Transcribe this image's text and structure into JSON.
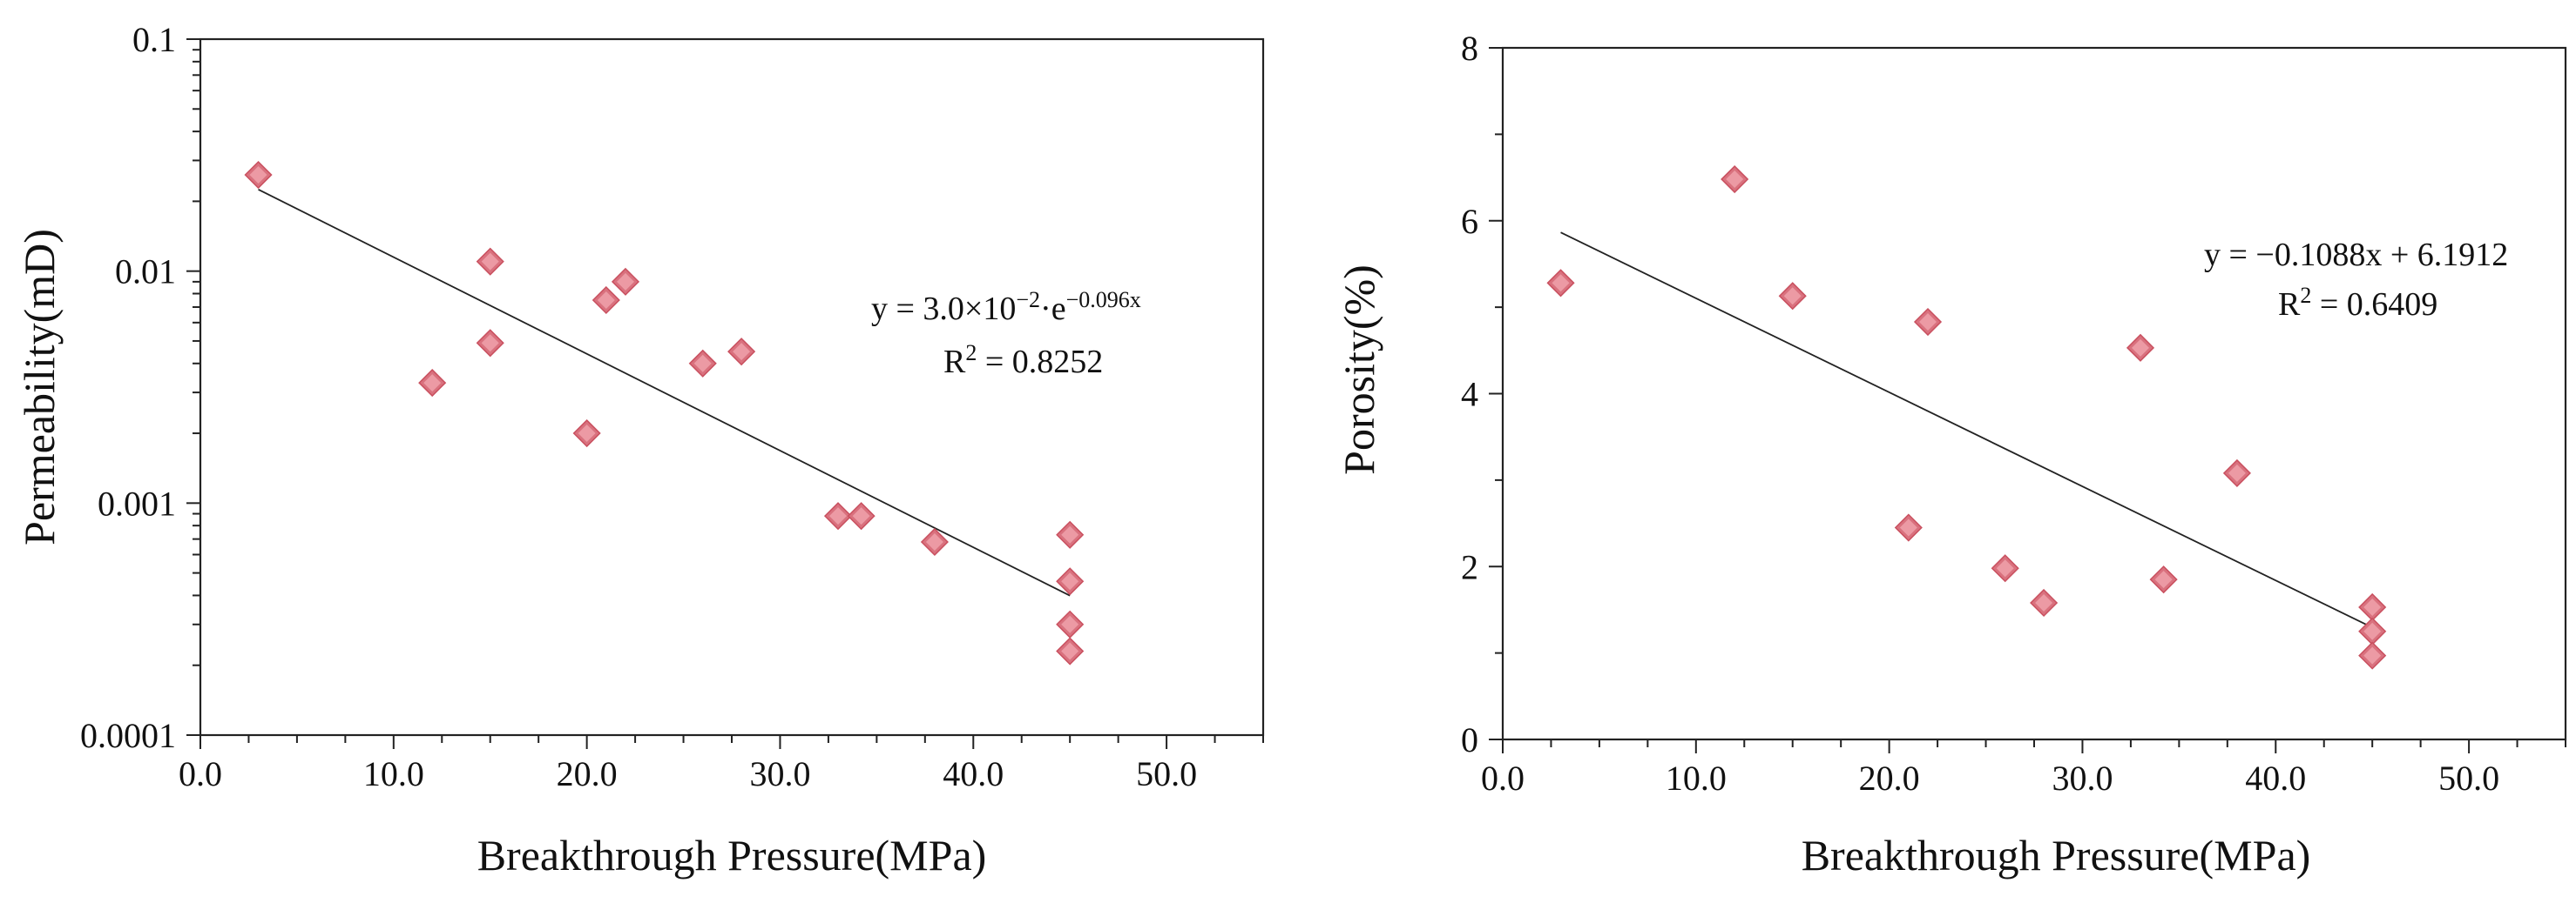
{
  "chart_data": [
    {
      "type": "scatter",
      "xlabel": "Breakthrough Pressure(MPa)",
      "ylabel": "Permeability(mD)",
      "yscale": "log",
      "xlim": [
        0,
        55
      ],
      "ylim": [
        0.0001,
        0.1
      ],
      "xticks": [
        "0.0",
        "10.0",
        "20.0",
        "30.0",
        "40.0",
        "50.0"
      ],
      "xtick_values": [
        0,
        10,
        20,
        30,
        40,
        50
      ],
      "yticks": [
        "0.0001",
        "0.001",
        "0.01",
        "0.1"
      ],
      "ytick_values": [
        0.0001,
        0.001,
        0.01,
        0.1
      ],
      "marker_color": "#d9717e",
      "points": [
        {
          "x": 3,
          "y": 0.026
        },
        {
          "x": 12,
          "y": 0.0033
        },
        {
          "x": 15,
          "y": 0.011
        },
        {
          "x": 15,
          "y": 0.0049
        },
        {
          "x": 20,
          "y": 0.002
        },
        {
          "x": 21,
          "y": 0.0075
        },
        {
          "x": 22,
          "y": 0.009
        },
        {
          "x": 26,
          "y": 0.004
        },
        {
          "x": 28,
          "y": 0.0045
        },
        {
          "x": 33,
          "y": 0.00088
        },
        {
          "x": 34.2,
          "y": 0.00088
        },
        {
          "x": 38,
          "y": 0.00068
        },
        {
          "x": 45,
          "y": 0.00073
        },
        {
          "x": 45,
          "y": 0.00046
        },
        {
          "x": 45,
          "y": 0.0003
        },
        {
          "x": 45,
          "y": 0.00023
        }
      ],
      "trendline": {
        "kind": "exp",
        "a": 0.03,
        "b": -0.096,
        "x_start": 3,
        "x_end": 45
      },
      "equation": {
        "prefix": "y = 3.0×10",
        "exp1": "−2",
        "middle": "·e",
        "exp2": "−0.096x",
        "r2_prefix": "R",
        "r2_sup": "2",
        "r2_suffix": " = 0.8252"
      }
    },
    {
      "type": "scatter",
      "xlabel": "Breakthrough Pressure(MPa)",
      "ylabel": "Porosity(%)",
      "yscale": "linear",
      "xlim": [
        0,
        55
      ],
      "ylim": [
        0,
        8
      ],
      "xticks": [
        "0.0",
        "10.0",
        "20.0",
        "30.0",
        "40.0",
        "50.0"
      ],
      "xtick_values": [
        0,
        10,
        20,
        30,
        40,
        50
      ],
      "yticks": [
        "0",
        "2",
        "4",
        "6",
        "8"
      ],
      "ytick_values": [
        0,
        2,
        4,
        6,
        8
      ],
      "marker_color": "#d9717e",
      "points": [
        {
          "x": 3,
          "y": 5.28
        },
        {
          "x": 12,
          "y": 6.48
        },
        {
          "x": 15,
          "y": 5.13
        },
        {
          "x": 21,
          "y": 2.45
        },
        {
          "x": 22,
          "y": 4.83
        },
        {
          "x": 26,
          "y": 1.98
        },
        {
          "x": 28,
          "y": 1.58
        },
        {
          "x": 33,
          "y": 4.53
        },
        {
          "x": 34.2,
          "y": 1.85
        },
        {
          "x": 38,
          "y": 3.08
        },
        {
          "x": 45,
          "y": 1.53
        },
        {
          "x": 45,
          "y": 1.25
        },
        {
          "x": 45,
          "y": 0.97
        }
      ],
      "trendline": {
        "kind": "linear",
        "m": -0.1088,
        "c": 6.1912,
        "x_start": 3,
        "x_end": 45
      },
      "equation": {
        "line1": "y = −0.1088x + 6.1912",
        "r2_prefix": "R",
        "r2_sup": "2",
        "r2_suffix": " = 0.6409"
      }
    }
  ]
}
